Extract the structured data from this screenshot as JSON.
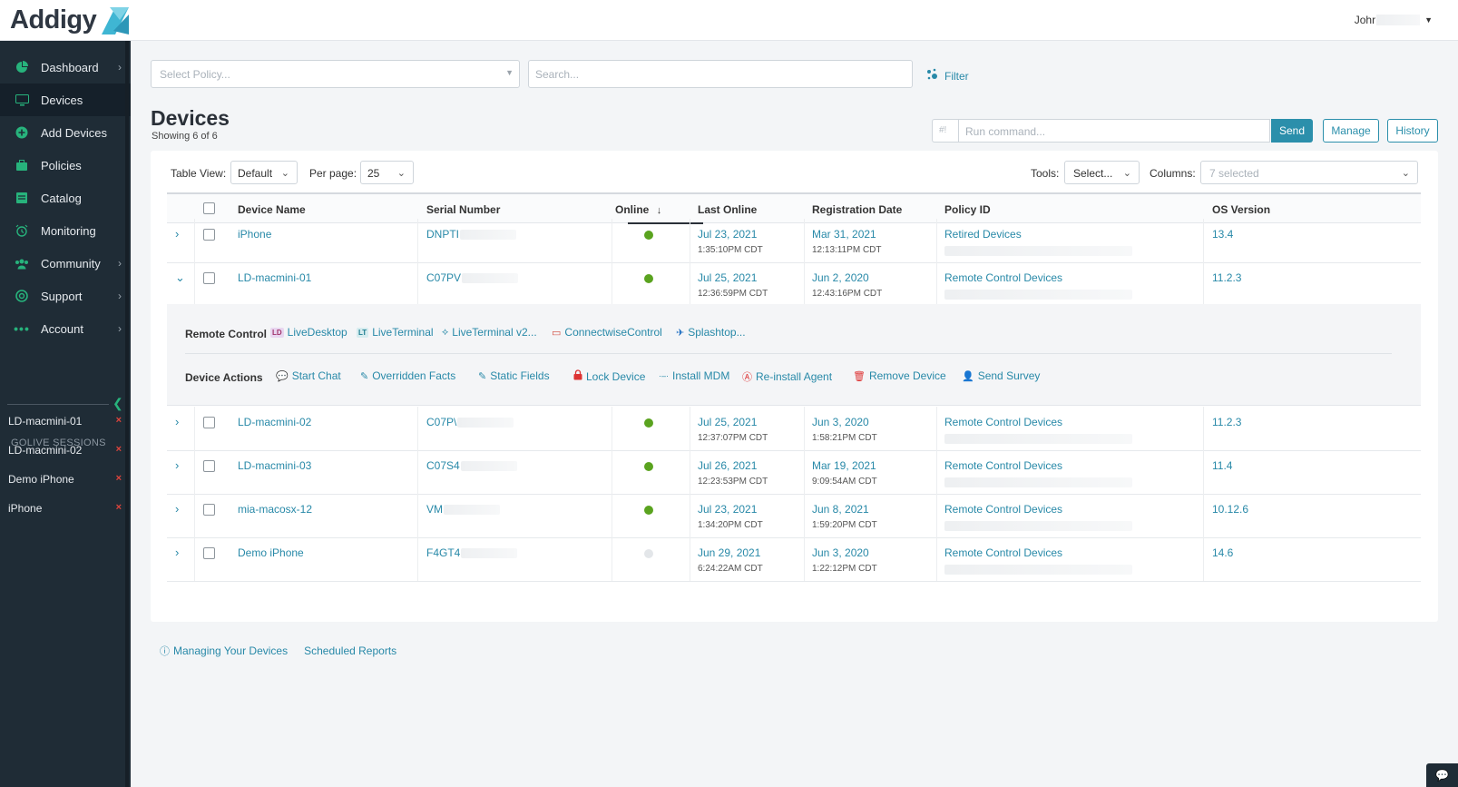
{
  "header": {
    "logo_text": "Addigy",
    "user_name": "Johr"
  },
  "sidebar": {
    "items": [
      {
        "label": "Dashboard",
        "icon": "pie-chart-icon",
        "has_chevron": true
      },
      {
        "label": "Devices",
        "icon": "monitor-icon",
        "has_chevron": false,
        "active": true
      },
      {
        "label": "Add Devices",
        "icon": "plus-circle-icon",
        "has_chevron": false
      },
      {
        "label": "Policies",
        "icon": "briefcase-icon",
        "has_chevron": false
      },
      {
        "label": "Catalog",
        "icon": "catalog-icon",
        "has_chevron": false
      },
      {
        "label": "Monitoring",
        "icon": "alarm-clock-icon",
        "has_chevron": false
      },
      {
        "label": "Community",
        "icon": "users-icon",
        "has_chevron": true
      },
      {
        "label": "Support",
        "icon": "lifebuoy-icon",
        "has_chevron": true
      },
      {
        "label": "Account",
        "icon": "dots-icon",
        "has_chevron": true
      }
    ],
    "golive_title": "GOLIVE SESSIONS",
    "sessions": [
      "LD-macmini-01",
      "LD-macmini-02",
      "Demo iPhone",
      "iPhone"
    ],
    "session_close": "×"
  },
  "toolbar": {
    "policy_placeholder": "Select Policy...",
    "search_placeholder": "Search...",
    "filter_label": "Filter"
  },
  "page": {
    "title": "Devices",
    "showing": "Showing 6 of 6"
  },
  "command": {
    "prefix": "#!",
    "placeholder": "Run command...",
    "send": "Send",
    "manage": "Manage",
    "history": "History"
  },
  "controls": {
    "table_view_label": "Table View:",
    "table_view_value": "Default",
    "per_page_label": "Per page:",
    "per_page_value": "25",
    "tools_label": "Tools:",
    "tools_value": "Select...",
    "columns_label": "Columns:",
    "columns_value": "7 selected"
  },
  "table": {
    "headers": {
      "device_name": "Device Name",
      "serial_number": "Serial Number",
      "online": "Online",
      "last_online": "Last Online",
      "registration_date": "Registration Date",
      "policy_id": "Policy ID",
      "os_version": "OS Version"
    },
    "sort_indicator": "↓",
    "rows": [
      {
        "name": "iPhone",
        "serial": "DNPTI",
        "online": true,
        "last_date": "Jul 23, 2021",
        "last_time": "1:35:10PM CDT",
        "reg_date": "Mar 31, 2021",
        "reg_time": "12:13:11PM CDT",
        "policy": "Retired Devices",
        "os": "13.4",
        "expanded": false
      },
      {
        "name": "LD-macmini-01",
        "serial": "C07PV",
        "online": true,
        "last_date": "Jul 25, 2021",
        "last_time": "12:36:59PM CDT",
        "reg_date": "Jun 2, 2020",
        "reg_time": "12:43:16PM CDT",
        "policy": "Remote Control Devices",
        "os": "11.2.3",
        "expanded": true
      },
      {
        "name": "LD-macmini-02",
        "serial": "C07P\\",
        "online": true,
        "last_date": "Jul 25, 2021",
        "last_time": "12:37:07PM CDT",
        "reg_date": "Jun 3, 2020",
        "reg_time": "1:58:21PM CDT",
        "policy": "Remote Control Devices",
        "os": "11.2.3",
        "expanded": false
      },
      {
        "name": "LD-macmini-03",
        "serial": "C07S4",
        "online": true,
        "last_date": "Jul 26, 2021",
        "last_time": "12:23:53PM CDT",
        "reg_date": "Mar 19, 2021",
        "reg_time": "9:09:54AM CDT",
        "policy": "Remote Control Devices",
        "os": "11.4",
        "expanded": false
      },
      {
        "name": "mia-macosx-12",
        "serial": "VM",
        "online": true,
        "last_date": "Jul 23, 2021",
        "last_time": "1:34:20PM CDT",
        "reg_date": "Jun 8, 2021",
        "reg_time": "1:59:20PM CDT",
        "policy": "Remote Control Devices",
        "os": "10.12.6",
        "expanded": false
      },
      {
        "name": "Demo iPhone",
        "serial": "F4GT4",
        "online": false,
        "last_date": "Jun 29, 2021",
        "last_time": "6:24:22AM CDT",
        "reg_date": "Jun 3, 2020",
        "reg_time": "1:22:12PM CDT",
        "policy": "Remote Control Devices",
        "os": "14.6",
        "expanded": false
      }
    ]
  },
  "expanded_panel": {
    "remote_control_label": "Remote Control",
    "remote_control_items": [
      {
        "label": "LiveDesktop",
        "icon": "livedesktop-icon"
      },
      {
        "label": "LiveTerminal",
        "icon": "liveterminal-icon"
      },
      {
        "label": "LiveTerminal v2...",
        "icon": "liveterminal-v2-icon"
      },
      {
        "label": "ConnectwiseControl",
        "icon": "connectwise-icon"
      },
      {
        "label": "Splashtop...",
        "icon": "splashtop-icon"
      }
    ],
    "device_actions_label": "Device Actions",
    "device_actions": [
      {
        "label": "Start Chat",
        "icon": "chat-icon"
      },
      {
        "label": "Overridden Facts",
        "icon": "pencil-icon"
      },
      {
        "label": "Static Fields",
        "icon": "pencil-icon"
      },
      {
        "label": "Lock Device",
        "icon": "lock-icon"
      },
      {
        "label": "Install MDM",
        "icon": "mdm-icon"
      },
      {
        "label": "Re-install Agent",
        "icon": "reinstall-icon"
      },
      {
        "label": "Remove Device",
        "icon": "trash-icon"
      },
      {
        "label": "Send Survey",
        "icon": "person-icon"
      }
    ]
  },
  "footer": {
    "managing_link": "Managing Your Devices",
    "reports_link": "Scheduled Reports"
  },
  "colors": {
    "accent": "#2889a8",
    "sidebar_bg": "#1f2c36",
    "online_green": "#5aa31f",
    "offline_gray": "#e3e6e9",
    "danger_red": "#e0443c"
  }
}
